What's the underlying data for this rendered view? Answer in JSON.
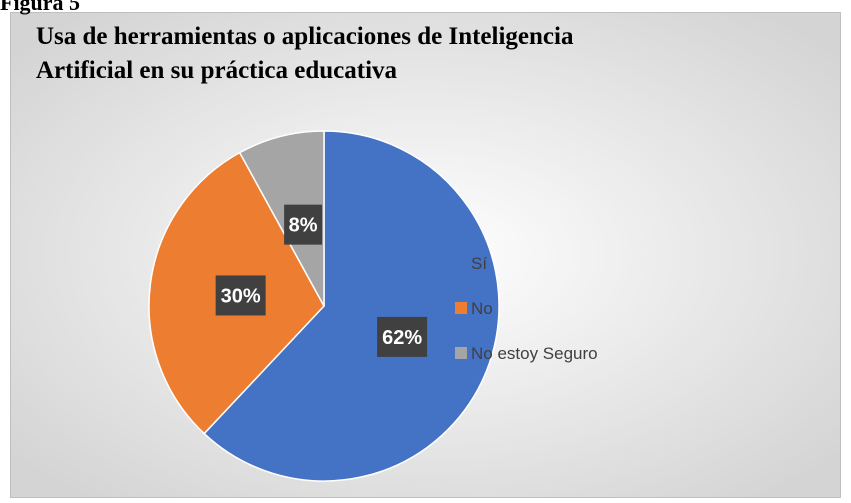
{
  "caption": "Figura 5",
  "chart_data": {
    "type": "pie",
    "title": [
      "Usa de herramientas o aplicaciones de Inteligencia",
      "Artificial en su práctica educativa"
    ],
    "categories": [
      "Sí",
      "No",
      "No estoy Seguro"
    ],
    "values": [
      62,
      30,
      8
    ],
    "value_labels": [
      "62%",
      "30%",
      "8%"
    ],
    "colors": [
      "#4472c4",
      "#ed7d31",
      "#a5a5a5"
    ],
    "legend": "right"
  }
}
